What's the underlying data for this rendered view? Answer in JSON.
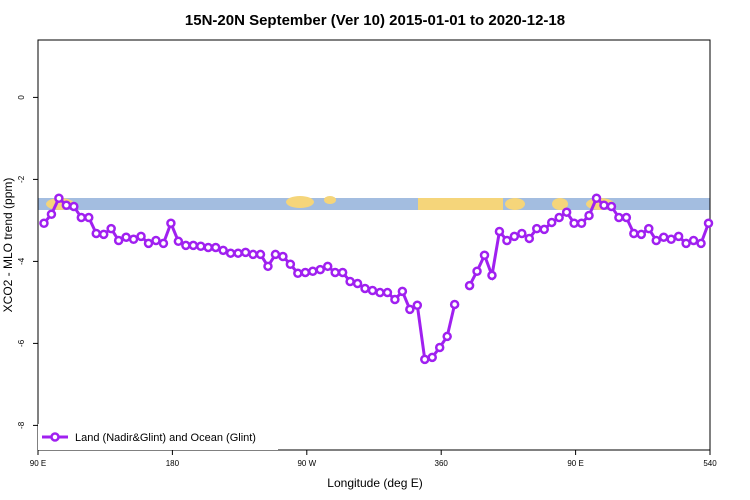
{
  "chart_data": {
    "type": "line",
    "title": "15N-20N September (Ver 10)   2015-01-01 to 2020-12-18",
    "x_label": "Longitude (deg E)",
    "y_label": "XCO2 - MLO trend (ppm)",
    "xlim": [
      90,
      540
    ],
    "ylim": [
      -8.6,
      1.4
    ],
    "xticks": [
      {
        "value": 90,
        "label": "90 E"
      },
      180,
      {
        "value": 270,
        "label": "90 W"
      },
      360,
      {
        "value": 450,
        "label": "90 E"
      },
      540
    ],
    "yticks": [
      0,
      -2,
      -4,
      -6,
      -8
    ],
    "legend": "bottom-left",
    "x": [
      94,
      99,
      104,
      109,
      114,
      119,
      124,
      129,
      134,
      139,
      144,
      149,
      154,
      159,
      164,
      169,
      174,
      179,
      184,
      189,
      194,
      199,
      204,
      209,
      214,
      219,
      224,
      229,
      234,
      239,
      244,
      249,
      254,
      259,
      264,
      269,
      274,
      279,
      284,
      289,
      294,
      299,
      304,
      309,
      314,
      319,
      324,
      329,
      334,
      339,
      344,
      349,
      354,
      359,
      364,
      369,
      374,
      379,
      384,
      389,
      394,
      399,
      404,
      409,
      414,
      419,
      424,
      429,
      434,
      439,
      444,
      449,
      454,
      459,
      464,
      469,
      474,
      479,
      484,
      489,
      494,
      499,
      504,
      509,
      514,
      519,
      524,
      529,
      534,
      539
    ],
    "series": [
      {
        "name": "Land (Nadir&Glint) and Ocean (Glint)",
        "color": "#a020f0",
        "values": [
          -3.07,
          -2.85,
          -2.46,
          -2.63,
          -2.66,
          -2.93,
          -2.93,
          -3.32,
          -3.34,
          -3.2,
          -3.49,
          -3.41,
          -3.46,
          -3.39,
          -3.56,
          -3.49,
          -3.56,
          -3.07,
          -3.51,
          -3.61,
          -3.61,
          -3.63,
          -3.66,
          -3.66,
          -3.73,
          -3.8,
          -3.8,
          -3.78,
          -3.83,
          -3.83,
          -4.12,
          -3.83,
          -3.88,
          -4.07,
          -4.29,
          -4.27,
          -4.24,
          -4.2,
          -4.12,
          -4.27,
          -4.27,
          -4.49,
          -4.54,
          -4.66,
          -4.71,
          -4.76,
          -4.76,
          -4.93,
          -4.73,
          -5.17,
          -5.07,
          -6.39,
          -6.34,
          -6.1,
          -5.83,
          -5.05,
          null,
          -4.59,
          -4.24,
          -3.85,
          -4.34,
          -3.27,
          -3.49,
          -3.39,
          -3.32,
          -3.44,
          -3.2,
          -3.22,
          -3.05,
          -2.93,
          -2.8,
          -3.07,
          -3.07,
          -2.88,
          -2.46,
          -2.63,
          -2.66,
          -2.93,
          -2.93,
          -3.32,
          -3.34,
          -3.2,
          -3.49,
          -3.41,
          -3.46,
          -3.39,
          -3.56,
          -3.49,
          -3.56,
          -3.07
        ]
      }
    ]
  }
}
